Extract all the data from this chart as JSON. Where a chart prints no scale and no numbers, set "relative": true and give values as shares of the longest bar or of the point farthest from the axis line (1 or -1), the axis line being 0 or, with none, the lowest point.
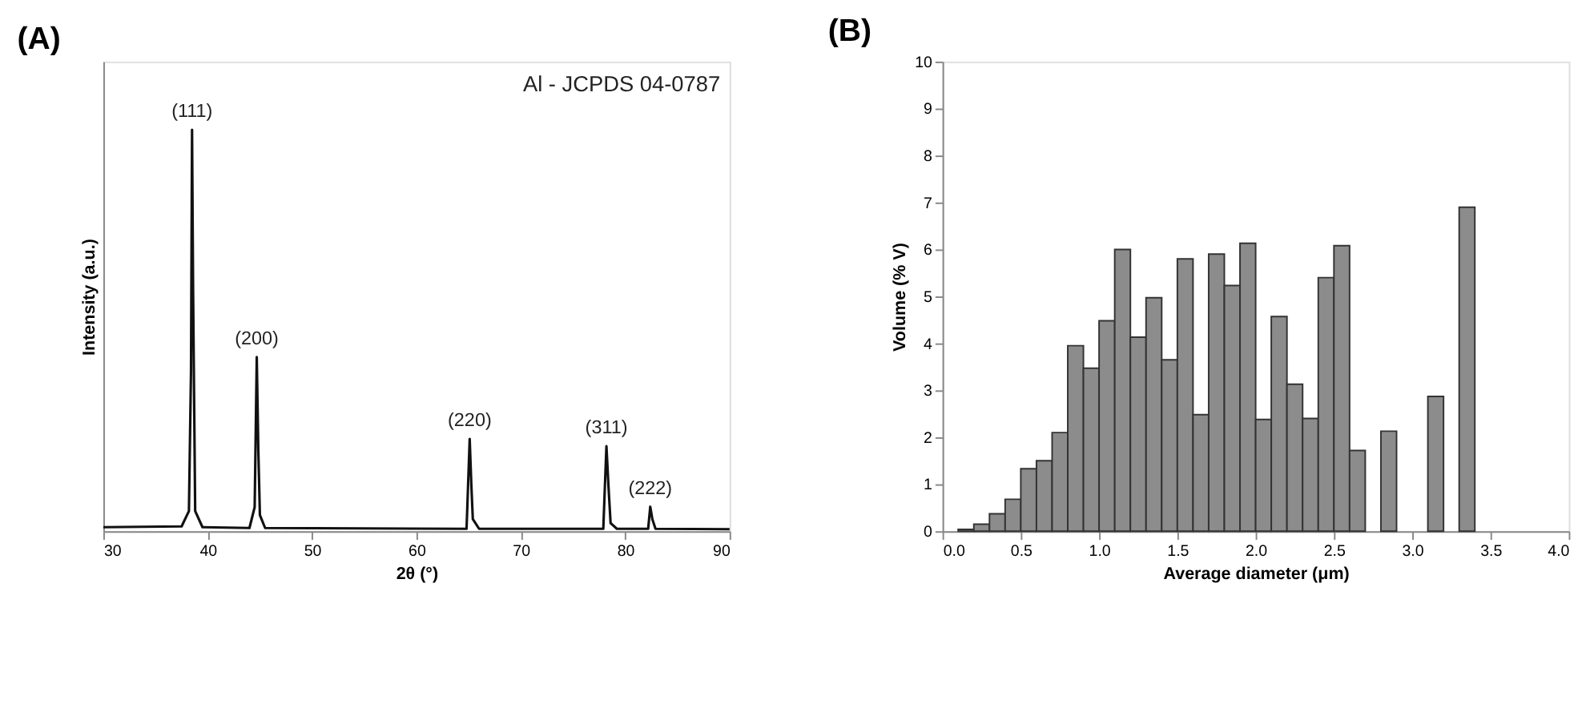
{
  "chart_data": [
    {
      "type": "line",
      "title": "(A)",
      "xlabel": "2θ (°)",
      "ylabel": "Intensity (a.u.)",
      "relative": true,
      "tick_labels": "x",
      "grid": false,
      "marker": "none",
      "line_style": "solid",
      "xlim": [
        30,
        90
      ],
      "xticks": [
        30,
        40,
        50,
        60,
        70,
        80,
        90
      ],
      "series": [
        {
          "color": "#111111",
          "x": [
            30,
            37.5,
            38.2,
            38.4,
            38.5,
            38.6,
            38.8,
            39.5,
            44.0,
            44.5,
            44.7,
            44.85,
            45.0,
            45.5,
            64.8,
            65.1,
            65.25,
            65.4,
            66.0,
            77.9,
            78.2,
            78.4,
            78.6,
            79.2,
            82.2,
            82.4,
            82.6,
            82.9,
            90
          ],
          "values": [
            0.01,
            0.012,
            0.05,
            0.4,
            1.0,
            0.6,
            0.05,
            0.01,
            0.008,
            0.06,
            0.434,
            0.2,
            0.04,
            0.008,
            0.006,
            0.23,
            0.12,
            0.03,
            0.006,
            0.006,
            0.212,
            0.11,
            0.02,
            0.006,
            0.006,
            0.061,
            0.03,
            0.006,
            0.005
          ]
        }
      ],
      "annotations": [
        "Al - JCPDS 04-0787",
        {
          "text": "(111)",
          "x": 38.5,
          "y": 1.0
        },
        {
          "text": "(200)",
          "x": 44.7,
          "y": 0.434
        },
        {
          "text": "(220)",
          "x": 65.1,
          "y": 0.23
        },
        {
          "text": "(311)",
          "x": 78.2,
          "y": 0.212
        },
        {
          "text": "(222)",
          "x": 82.4,
          "y": 0.061
        }
      ]
    },
    {
      "type": "histogram",
      "title": "(B)",
      "xlabel": "Average diameter (μm)",
      "ylabel": "Volume (% V)",
      "grid": false,
      "color": "#8c8c8c",
      "bins": [
        0.1,
        0.2,
        0.3,
        0.4,
        0.5,
        0.6,
        0.7,
        0.8,
        0.9,
        1.0,
        1.1,
        1.2,
        1.3,
        1.4,
        1.5,
        1.6,
        1.7,
        1.8,
        1.9,
        2.0,
        2.1,
        2.2,
        2.3,
        2.4,
        2.5,
        2.6,
        2.7,
        2.8,
        2.9,
        3.0,
        3.1,
        3.2,
        3.3,
        3.4
      ],
      "values": [
        0.04,
        0.15,
        0.37,
        0.68,
        1.33,
        1.5,
        2.1,
        3.95,
        3.47,
        4.48,
        6.0,
        4.13,
        4.97,
        3.65,
        5.8,
        2.48,
        5.9,
        5.23,
        6.13,
        2.38,
        4.57,
        3.13,
        2.4,
        5.4,
        6.08,
        1.72,
        null,
        2.13,
        null,
        null,
        2.87,
        null,
        6.9
      ],
      "xlim": [
        0,
        4
      ],
      "xticks": [
        {
          "value": 0,
          "label": "0.0"
        },
        0.5,
        {
          "value": 1,
          "label": "1.0"
        },
        1.5,
        {
          "value": 2,
          "label": "2.0"
        },
        2.5,
        {
          "value": 3,
          "label": "3.0"
        },
        3.5,
        {
          "value": 4,
          "label": "4.0"
        }
      ],
      "ylim": [
        0,
        10
      ],
      "yticks": [
        0,
        1,
        2,
        3,
        4,
        5,
        6,
        7,
        8,
        9,
        10
      ]
    }
  ]
}
